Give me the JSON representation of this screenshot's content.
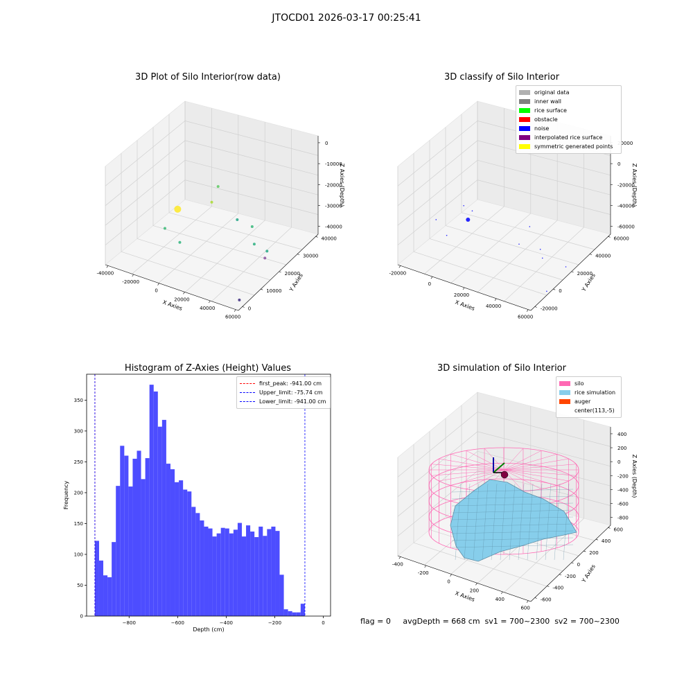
{
  "suptitle": "JTOCD01 2026-03-17 00:25:41",
  "footer": "flag = 0     avgDepth = 668 cm  sv1 = 700~2300  sv2 = 700~2300",
  "chart_data": [
    {
      "type": "scatter3d",
      "title": "3D Plot of Silo Interior(row data)",
      "xlabel": "X Axies",
      "ylabel": "Y Axies",
      "zlabel": "Z Axies (Depth)",
      "xticks": [
        "-40000",
        "-20000",
        "0",
        "20000",
        "40000",
        "60000"
      ],
      "yticks": [
        "0",
        "10000",
        "20000",
        "30000",
        "40000"
      ],
      "zticks": [
        "0",
        "-10000",
        "-20000",
        "-30000",
        "-40000"
      ],
      "points": [
        {
          "u": 0.34,
          "v": 0.42,
          "color": "#fde725",
          "r": 5
        },
        {
          "u": 0.53,
          "v": 0.29,
          "color": "#5ec962",
          "r": 2
        },
        {
          "u": 0.5,
          "v": 0.38,
          "color": "#aadc32",
          "r": 2
        },
        {
          "u": 0.62,
          "v": 0.48,
          "color": "#21a585",
          "r": 2
        },
        {
          "u": 0.69,
          "v": 0.52,
          "color": "#35b779",
          "r": 2
        },
        {
          "u": 0.28,
          "v": 0.53,
          "color": "#3aba76",
          "r": 2
        },
        {
          "u": 0.35,
          "v": 0.61,
          "color": "#2fb47c",
          "r": 2
        },
        {
          "u": 0.7,
          "v": 0.62,
          "color": "#29af7f",
          "r": 2
        },
        {
          "u": 0.76,
          "v": 0.66,
          "color": "#22a884",
          "r": 2
        },
        {
          "u": 0.75,
          "v": 0.7,
          "color": "#8a4f9e",
          "r": 2
        },
        {
          "u": 0.63,
          "v": 0.94,
          "color": "#3b2a7e",
          "r": 2
        }
      ]
    },
    {
      "type": "scatter3d",
      "title": "3D classify of Silo Interior",
      "xlabel": "X Axies",
      "ylabel": "Y Axies",
      "zlabel": "Z Axies (Depth)",
      "xticks": [
        "-20000",
        "0",
        "20000",
        "40000",
        "60000"
      ],
      "yticks": [
        "-20000",
        "0",
        "20000",
        "40000",
        "60000"
      ],
      "zticks": [
        "20000",
        "0",
        "-20000",
        "-40000",
        "-60000"
      ],
      "legend": [
        {
          "label": "original data",
          "color": "#b0b0b0"
        },
        {
          "label": "inner wall",
          "color": "#808080"
        },
        {
          "label": "rice surface",
          "color": "#00ff00"
        },
        {
          "label": "obstacle",
          "color": "#ff0000"
        },
        {
          "label": "noise",
          "color": "#0000ff"
        },
        {
          "label": "interpolated rice surface",
          "color": "#800080"
        },
        {
          "label": "symmetric generated points",
          "color": "#ffff00"
        }
      ],
      "points": [
        {
          "u": 0.33,
          "v": 0.48,
          "color": "#0000ff",
          "r": 3
        },
        {
          "u": 0.31,
          "v": 0.4,
          "color": "#0000ff",
          "r": 0.8
        },
        {
          "u": 0.35,
          "v": 0.43,
          "color": "#0000ff",
          "r": 0.8
        },
        {
          "u": 0.18,
          "v": 0.48,
          "color": "#0000ff",
          "r": 0.8
        },
        {
          "u": 0.23,
          "v": 0.57,
          "color": "#0000ff",
          "r": 0.8
        },
        {
          "u": 0.62,
          "v": 0.52,
          "color": "#0000ff",
          "r": 0.8
        },
        {
          "u": 0.57,
          "v": 0.62,
          "color": "#0000ff",
          "r": 0.8
        },
        {
          "u": 0.67,
          "v": 0.65,
          "color": "#0000ff",
          "r": 0.8
        },
        {
          "u": 0.68,
          "v": 0.7,
          "color": "#0000ff",
          "r": 0.8
        },
        {
          "u": 0.79,
          "v": 0.75,
          "color": "#0000ff",
          "r": 0.8
        },
        {
          "u": 0.7,
          "v": 0.89,
          "color": "#0000ff",
          "r": 0.8
        }
      ]
    },
    {
      "type": "bar",
      "title": "Histogram of Z-Axies (Height) Values",
      "xlabel": "Depth (cm)",
      "ylabel": "Frequency",
      "xlim": [
        -975,
        30
      ],
      "ylim": [
        0,
        392
      ],
      "xticks": [
        -800,
        -600,
        -400,
        -200,
        0
      ],
      "yticks": [
        0,
        50,
        100,
        150,
        200,
        250,
        300,
        350
      ],
      "bar_color": "#4d4dff",
      "bin_start": -941,
      "bin_width": 17.3,
      "values": [
        122,
        90,
        66,
        63,
        120,
        211,
        276,
        260,
        210,
        255,
        268,
        222,
        256,
        375,
        364,
        307,
        318,
        247,
        238,
        217,
        220,
        205,
        202,
        177,
        167,
        155,
        145,
        142,
        129,
        134,
        143,
        142,
        134,
        140,
        151,
        129,
        147,
        137,
        128,
        145,
        130,
        141,
        145,
        138,
        67,
        11,
        8,
        6,
        6,
        20
      ],
      "vlines": [
        {
          "x": -941.0,
          "color": "#ff0000",
          "label": "first_peak: -941.00 cm"
        },
        {
          "x": -75.74,
          "color": "#0000ff",
          "label": "Upper_limit: -75.74 cm"
        },
        {
          "x": -941.0,
          "color": "#0000ff",
          "label": "Lower_limit: -941.00 cm"
        }
      ]
    },
    {
      "type": "surface3d",
      "title": "3D simulation of Silo Interior",
      "xlabel": "X Axies",
      "ylabel": "Y Axies",
      "zlabel": "Z Axies (Depth)",
      "xticks": [
        "-400",
        "-200",
        "0",
        "200",
        "400",
        "600"
      ],
      "yticks": [
        "-600",
        "-400",
        "-200",
        "0",
        "200",
        "400",
        "600"
      ],
      "zticks": [
        "400",
        "200",
        "0",
        "-200",
        "-400",
        "-600",
        "-800"
      ],
      "legend": [
        {
          "label": "silo",
          "color": "#ff69b4"
        },
        {
          "label": "rice simulation",
          "color": "#87ceeb"
        },
        {
          "label": "auger",
          "color": "#ff4500"
        },
        {
          "label": "center(113,-5)",
          "color": ""
        }
      ]
    }
  ]
}
